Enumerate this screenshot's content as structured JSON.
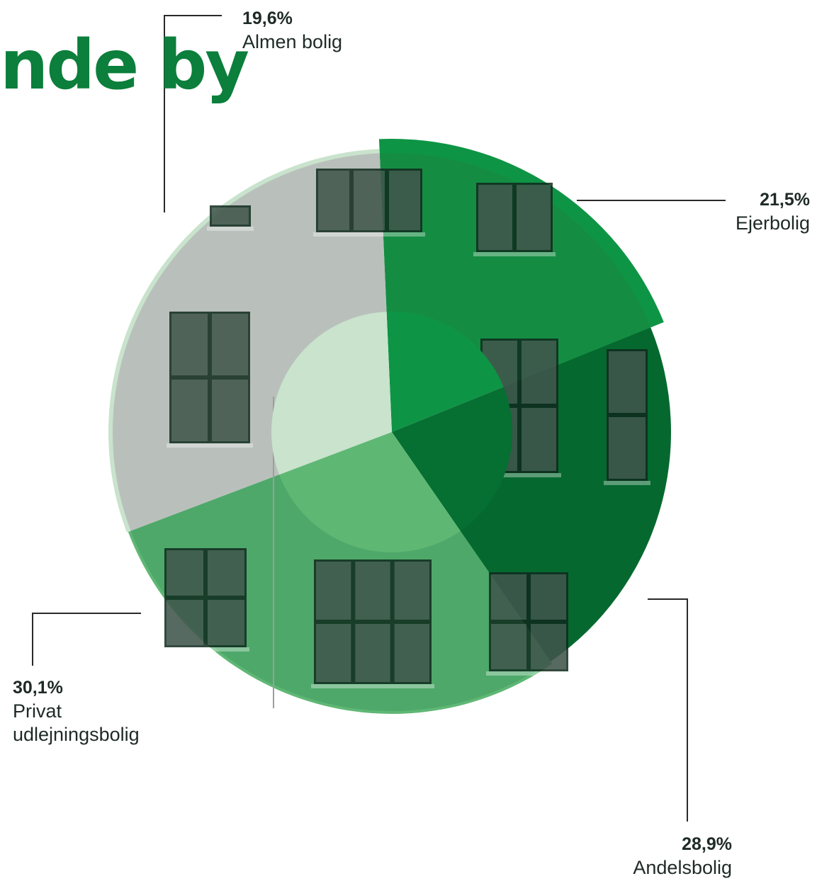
{
  "title": "nde by",
  "colors": {
    "title": "#0b7f3b",
    "leader": "#2a2a2a",
    "outer_ring": [
      "#0e9445",
      "#066f32",
      "#5fb774",
      "#c9e3cd"
    ],
    "photo_tint": [
      "#148d43",
      "#05692f",
      "#4ea86a",
      "#b9c0bb"
    ]
  },
  "chart_data": {
    "type": "pie",
    "donut": true,
    "title": "",
    "legend": "none",
    "slices": [
      {
        "pct_label": "19,6%",
        "value": 19.6,
        "label": "Almen bolig"
      },
      {
        "pct_label": "21,5%",
        "value": 21.5,
        "label": "Ejerbolig"
      },
      {
        "pct_label": "28,9%",
        "value": 28.9,
        "label": "Andelsbolig"
      },
      {
        "pct_label": "30,1%",
        "value": 30.1,
        "label_lines": [
          "Privat",
          "udlejningsbolig"
        ]
      }
    ]
  }
}
